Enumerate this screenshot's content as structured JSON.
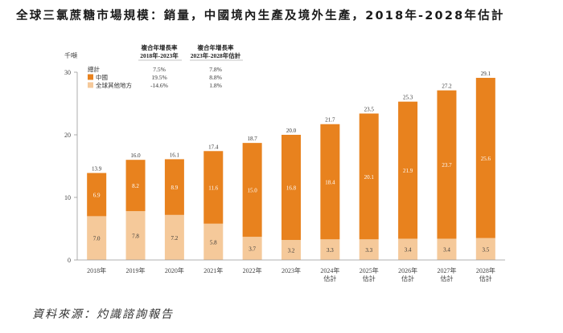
{
  "title": "全球三氯蔗糖市場規模：銷量，中國境內生產及境外生產，2018年-2028年估計",
  "source": "資料來源：灼識諮詢報告",
  "colors": {
    "china": "#E8821E",
    "other": "#F5C99A",
    "axis": "#999999",
    "grid": "#e6e6e6"
  },
  "chart_data": {
    "type": "bar",
    "stacked": true,
    "unit": "千噸",
    "ylim": [
      0,
      30
    ],
    "yticks": [
      0,
      10,
      20,
      30
    ],
    "categories": [
      "2018年",
      "2019年",
      "2020年",
      "2021年",
      "2022年",
      "2023年",
      "2024年\n估計",
      "2025年\n估計",
      "2026年\n估計",
      "2027年\n估計",
      "2028年\n估計"
    ],
    "totals": [
      "13.9",
      "16.0",
      "16.1",
      "17.4",
      "18.7",
      "20.0",
      "21.7",
      "23.5",
      "25.3",
      "27.2",
      "29.1"
    ],
    "series": [
      {
        "name": "全球其他地方",
        "values": [
          7.0,
          7.8,
          7.2,
          5.8,
          3.7,
          3.2,
          3.3,
          3.3,
          3.4,
          3.4,
          3.5
        ],
        "labels": [
          "7.0",
          "7.8",
          "7.2",
          "5.8",
          "3.7",
          "3.2",
          "3.3",
          "3.3",
          "3.4",
          "3.4",
          "3.5"
        ]
      },
      {
        "name": "中國",
        "values": [
          6.9,
          8.2,
          8.9,
          11.6,
          15.0,
          16.8,
          18.4,
          20.1,
          21.9,
          23.7,
          25.6
        ],
        "labels": [
          "6.9",
          "8.2",
          "8.9",
          "11.6",
          "15.0",
          "16.8",
          "18.4",
          "20.1",
          "21.9",
          "23.7",
          "25.6"
        ]
      }
    ],
    "legend": {
      "header_total": "總計",
      "cagr_headers": [
        [
          "複合年增長率",
          "2018年-2023年"
        ],
        [
          "複合年增長率",
          "2023年-2028年估計"
        ]
      ],
      "rows": [
        {
          "name": "總計",
          "swatch": false,
          "cagr": [
            "7.5%",
            "7.8%"
          ]
        },
        {
          "name": "中國",
          "swatch": "china",
          "cagr": [
            "19.5%",
            "8.8%"
          ]
        },
        {
          "name": "全球其他地方",
          "swatch": "other",
          "cagr": [
            "-14.6%",
            "1.8%"
          ]
        }
      ]
    }
  }
}
